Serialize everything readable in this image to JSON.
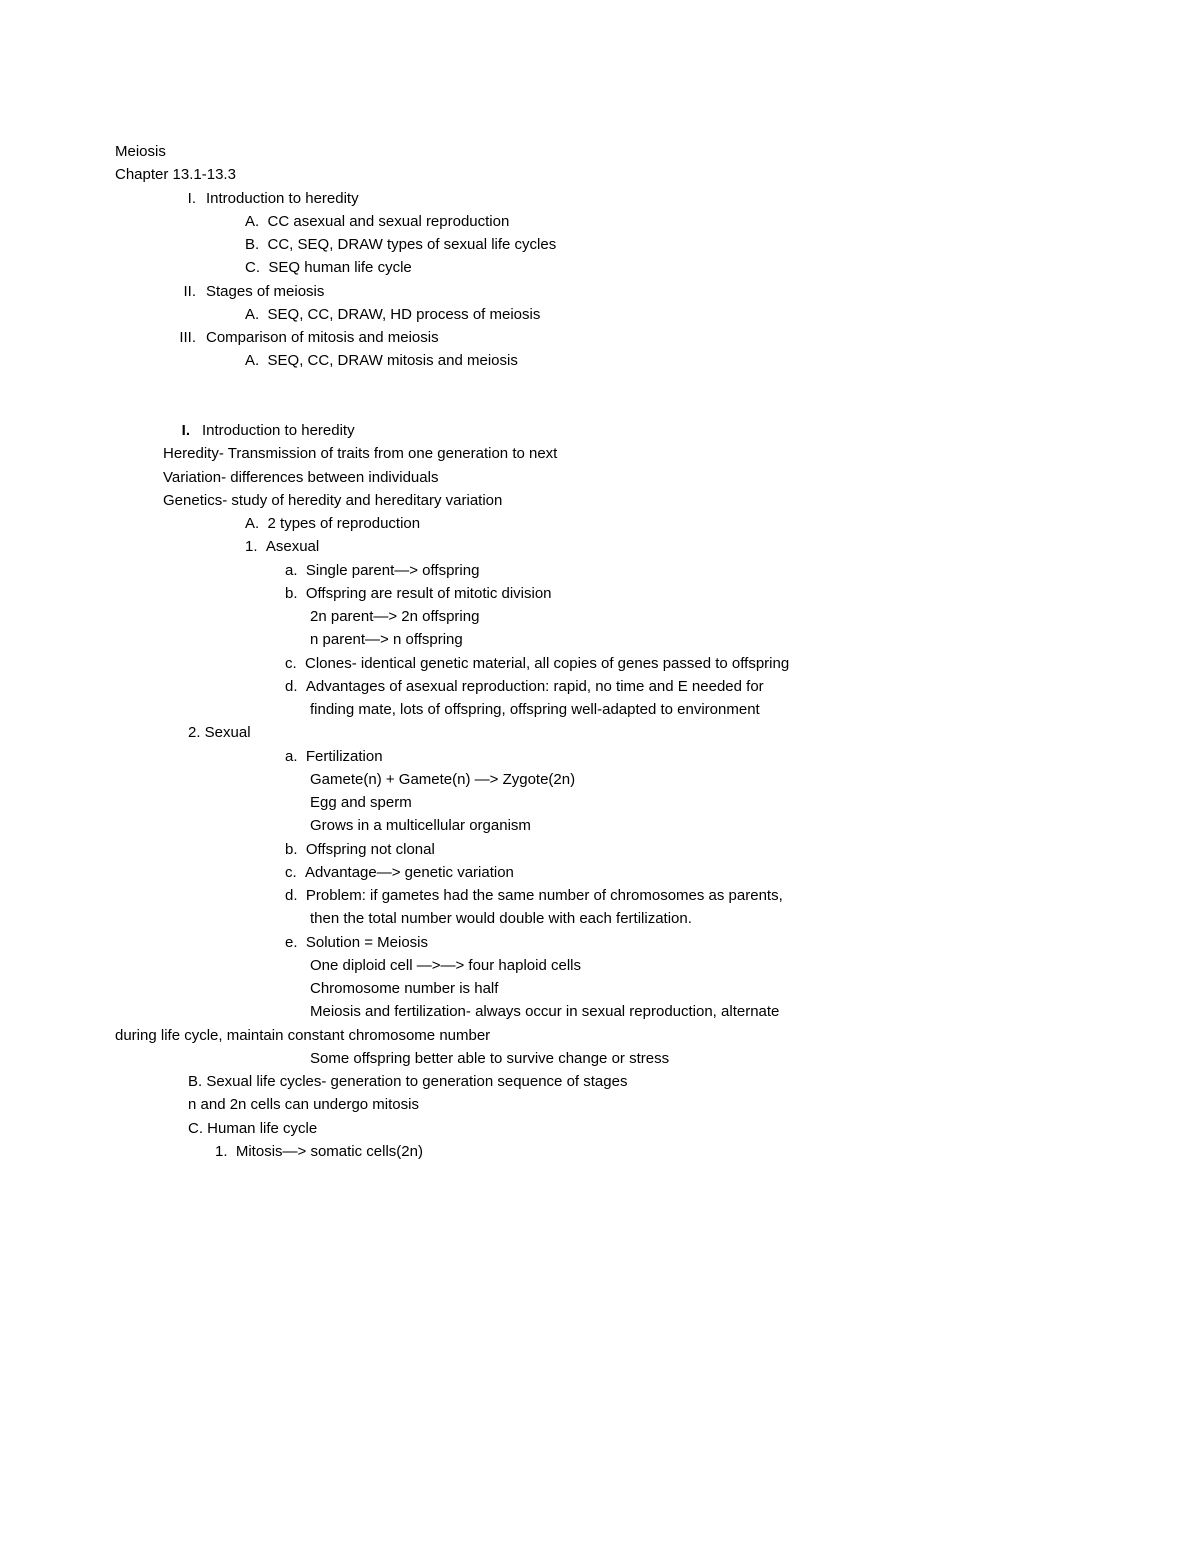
{
  "background_color": "#ffffff",
  "text_color": "#000000",
  "font_family": "Arial",
  "font_size_pt": 11,
  "title": "Meiosis",
  "subtitle": "Chapter 13.1-13.3",
  "outline": {
    "I": {
      "marker": "I.",
      "label": "Introduction to heredity",
      "items": {
        "A": "CC asexual and sexual reproduction",
        "B": "CC, SEQ, DRAW types of sexual life cycles",
        "C": "SEQ human life cycle"
      }
    },
    "II": {
      "marker": "II.",
      "label": "Stages of meiosis",
      "items": {
        "A": "SEQ, CC, DRAW, HD process of meiosis"
      }
    },
    "III": {
      "marker": "III.",
      "label": "Comparison of mitosis and meiosis",
      "items": {
        "A": "SEQ, CC, DRAW mitosis and meiosis"
      }
    }
  },
  "sectionI": {
    "marker": "I.",
    "heading": "Introduction to heredity",
    "def1": "Heredity- Transmission of traits from one generation to next",
    "def2": "Variation- differences between individuals",
    "def3": "Genetics- study of heredity and hereditary variation",
    "A": "2 types of reproduction",
    "n1": "Asexual",
    "n1a": "Single parent—> offspring",
    "n1b": "Offspring are result of mitotic division",
    "n1b_l1": "2n parent—> 2n offspring",
    "n1b_l2": "n parent—> n offspring",
    "n1c": "Clones- identical genetic material, all copies of genes passed to offspring",
    "n1d": "Advantages of asexual reproduction: rapid, no time and E needed for",
    "n1d_l2": "finding mate, lots of offspring, offspring well-adapted to environment",
    "n2": "2. Sexual",
    "n2a": "Fertilization",
    "n2a_l1": "Gamete(n) + Gamete(n) —> Zygote(2n)",
    "n2a_l2": "Egg and sperm",
    "n2a_l3": "Grows in a multicellular organism",
    "n2b": "Offspring not clonal",
    "n2c": "Advantage—> genetic variation",
    "n2d": "Problem: if gametes had the same number of chromosomes as parents,",
    "n2d_l2": "then the total number would double with each fertilization.",
    "n2e": "Solution = Meiosis",
    "n2e_l1": "One diploid cell —>—> four haploid cells",
    "n2e_l2": "Chromosome number is half",
    "n2e_l3": "Meiosis and fertilization- always occur in sexual reproduction, alternate",
    "n2e_cont": "during life cycle, maintain constant chromosome number",
    "n2e_l4": "Some offspring better able to survive change or stress",
    "B": "B. Sexual life cycles- generation to generation sequence of stages",
    "B_l2": "n and 2n cells can undergo mitosis",
    "C": "C. Human life cycle",
    "C1": "Mitosis—> somatic cells(2n)"
  }
}
